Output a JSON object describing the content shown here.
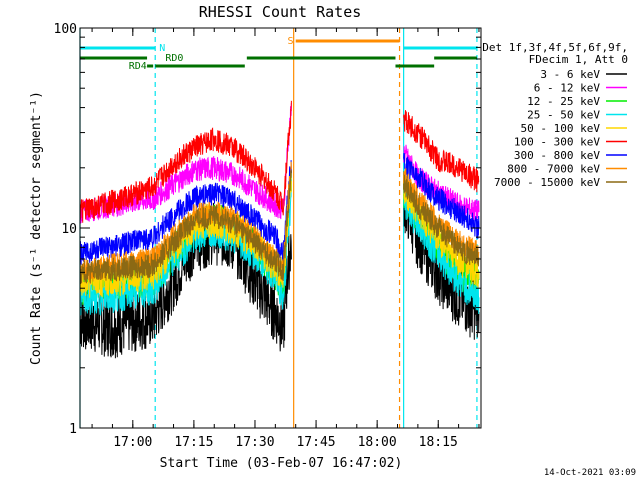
{
  "chart_data": {
    "type": "line",
    "title": "RHESSI Count Rates",
    "xlabel": "Start Time (03-Feb-07 16:47:02)",
    "ylabel": "Count Rate (s⁻¹ detector segment⁻¹)",
    "yscale": "log",
    "ylim": [
      1,
      100
    ],
    "xlim": [
      "16:47:02",
      "18:25:30"
    ],
    "x_ticks": [
      "17:00",
      "17:15",
      "17:30",
      "17:45",
      "18:00",
      "18:15"
    ],
    "y_ticks": [
      "1",
      "10",
      "100"
    ],
    "grid": false,
    "legend_position": "right",
    "legend_header": [
      "Det 1f,3f,4f,5f,6f,9f,",
      "FDecim 1, Att 0"
    ],
    "timestamp": "14-Oct-2021 03:09",
    "gaps": [
      [
        "17:39:30",
        "18:06:30"
      ]
    ],
    "state_bars": {
      "N": {
        "color": "#00e5ee",
        "segments": [
          [
            "16:47:02",
            "17:05:30"
          ],
          [
            "18:06:30",
            "18:24:30"
          ]
        ]
      },
      "RD0": {
        "color": "#007000",
        "segments": [
          [
            "16:47:02",
            "17:03:30"
          ],
          [
            "17:28:00",
            "18:04:30"
          ],
          [
            "18:14:00",
            "18:24:30"
          ]
        ]
      },
      "RD4": {
        "color": "#007000",
        "segments": [
          [
            "17:03:30",
            "17:05:00"
          ],
          [
            "17:05:30",
            "17:27:30"
          ],
          [
            "18:04:30",
            "18:14:00"
          ]
        ]
      },
      "S": {
        "color": "#ff8c00",
        "segments": [
          [
            "17:40:00",
            "18:05:30"
          ]
        ]
      }
    },
    "vertical_markers": [
      {
        "time": "16:47:02",
        "color": "#00e5ee",
        "style": "solid"
      },
      {
        "time": "17:05:30",
        "color": "#00e5ee",
        "style": "dashed"
      },
      {
        "time": "17:39:30",
        "color": "#ff8c00",
        "style": "solid"
      },
      {
        "time": "18:05:30",
        "color": "#ff8c00",
        "style": "dashed"
      },
      {
        "time": "18:06:30",
        "color": "#00e5ee",
        "style": "solid"
      },
      {
        "time": "18:24:30",
        "color": "#00e5ee",
        "style": "dashed"
      }
    ],
    "x": [
      "16:47:02",
      "16:55",
      "17:05",
      "17:10",
      "17:15",
      "17:20",
      "17:25",
      "17:30",
      "17:35",
      "17:37",
      "17:38",
      "17:39",
      "17:39:30",
      "18:06:30",
      "18:10",
      "18:15",
      "18:20",
      "18:25"
    ],
    "series": [
      {
        "name": "3 - 6 keV",
        "color": "#000000",
        "values": [
          3.5,
          3.2,
          3.6,
          5.5,
          8.5,
          9.5,
          8.5,
          5.5,
          3.8,
          3.2,
          6.0,
          9.0,
          null,
          14,
          9,
          6,
          4.5,
          3.8
        ]
      },
      {
        "name": "6 - 12 keV",
        "color": "#ff00ff",
        "values": [
          12,
          13,
          14,
          16.5,
          19.5,
          20,
          18.5,
          15.5,
          13,
          12.5,
          25,
          40,
          null,
          24,
          18,
          15,
          13,
          12
        ]
      },
      {
        "name": "12 - 25 keV",
        "color": "#00ee00",
        "values": [
          5,
          5.2,
          5.5,
          7.5,
          10,
          11,
          10,
          8,
          6,
          5,
          10,
          17,
          null,
          15,
          11.5,
          8,
          6,
          5.5
        ]
      },
      {
        "name": "25 - 50 keV",
        "color": "#00e5ee",
        "values": [
          4.4,
          4.6,
          5,
          7,
          9,
          10,
          9,
          7.5,
          5.8,
          4.5,
          9,
          15,
          null,
          14,
          10.5,
          7.5,
          5.5,
          4.5
        ]
      },
      {
        "name": "50 - 100 keV",
        "color": "#ffd700",
        "values": [
          5.5,
          5.5,
          6,
          8,
          10.5,
          11,
          10,
          8.5,
          6.5,
          5.8,
          11,
          18,
          null,
          16,
          12.5,
          9,
          7,
          6
        ]
      },
      {
        "name": "100 - 300 keV",
        "color": "#ff0000",
        "values": [
          12,
          13.5,
          16,
          21,
          25,
          28,
          25,
          20,
          15,
          13,
          25,
          40,
          null,
          35,
          30,
          22,
          20,
          17
        ]
      },
      {
        "name": "300 - 800 keV",
        "color": "#0000ff",
        "values": [
          7.5,
          8,
          9,
          11.5,
          14,
          15,
          13.5,
          11,
          9,
          7.5,
          14,
          22,
          null,
          21,
          18,
          14,
          12,
          10
        ]
      },
      {
        "name": "800 - 7000 keV",
        "color": "#ff8c00",
        "values": [
          6,
          6.5,
          7,
          9,
          11.5,
          12,
          11,
          9,
          7,
          6.5,
          13,
          20,
          null,
          18,
          14,
          10.5,
          8.5,
          7.5
        ]
      },
      {
        "name": "7000 - 15000 keV",
        "color": "#8b6914",
        "values": [
          6,
          6.2,
          6.5,
          8.5,
          11,
          11.5,
          10.5,
          8.5,
          6.8,
          6.2,
          12,
          19,
          null,
          17,
          13,
          10,
          8,
          7
        ]
      }
    ]
  }
}
